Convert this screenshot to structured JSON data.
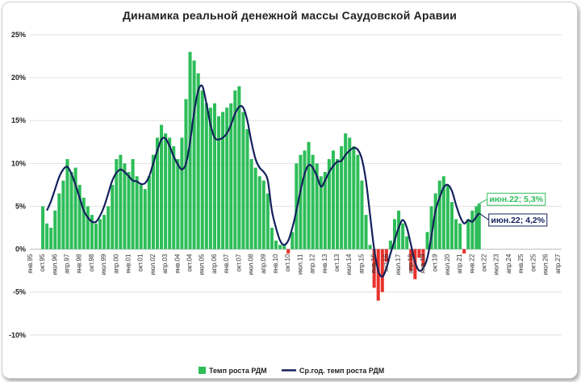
{
  "chart_data": {
    "type": "bar+line",
    "title": "Динамика реальной денежной массы Саудовской Аравии",
    "ylim": [
      -12,
      25
    ],
    "yticks": [
      -10,
      -5,
      0,
      5,
      10,
      15,
      20,
      25
    ],
    "ytick_labels": [
      "-10%",
      "-5%",
      "0%",
      "5%",
      "10%",
      "15%",
      "20%",
      "25%"
    ],
    "x_tick_labels": [
      "янв.95",
      "окт.95",
      "июл.96",
      "апр.97",
      "янв.98",
      "окт.98",
      "июл.99",
      "апр.00",
      "янв.01",
      "окт.01",
      "июл.02",
      "апр.03",
      "янв.04",
      "окт.04",
      "июл.05",
      "апр.06",
      "янв.07",
      "окт.07",
      "июл.08",
      "апр.09",
      "янв.10",
      "окт.10",
      "июл.11",
      "апр.12",
      "янв.13",
      "окт.13",
      "июл.14",
      "апр.15",
      "янв.16",
      "окт.16",
      "июл.17",
      "апр.18",
      "янв.19",
      "окт.19",
      "июл.20",
      "апр.21",
      "янв.22",
      "окт.22",
      "июл.23",
      "апр.24",
      "янв.25",
      "окт.25",
      "июл.26",
      "апр.27"
    ],
    "grid": true,
    "legend_position": "bottom",
    "series": [
      {
        "name": "Темп роста РДМ",
        "type": "bar",
        "color": "#2ebd59",
        "negative_color": "#e8322c",
        "x": [
          "окт.95",
          "янв.96",
          "апр.96",
          "июл.96",
          "окт.96",
          "янв.97",
          "апр.97",
          "июл.97",
          "окт.97",
          "янв.98",
          "апр.98",
          "июл.98",
          "окт.98",
          "янв.99",
          "апр.99",
          "июл.99",
          "окт.99",
          "янв.00",
          "апр.00",
          "июл.00",
          "окт.00",
          "янв.01",
          "апр.01",
          "июл.01",
          "окт.01",
          "янв.02",
          "апр.02",
          "июл.02",
          "окт.02",
          "янв.03",
          "апр.03",
          "июл.03",
          "окт.03",
          "янв.04",
          "апр.04",
          "июл.04",
          "окт.04",
          "янв.05",
          "апр.05",
          "июл.05",
          "окт.05",
          "янв.06",
          "апр.06",
          "июл.06",
          "окт.06",
          "янв.07",
          "апр.07",
          "июл.07",
          "окт.07",
          "янв.08",
          "апр.08",
          "июл.08",
          "окт.08",
          "янв.09",
          "апр.09",
          "июл.09",
          "окт.09",
          "янв.10",
          "апр.10",
          "июл.10",
          "окт.10",
          "янв.11",
          "апр.11",
          "июл.11",
          "окт.11",
          "янв.12",
          "апр.12",
          "июл.12",
          "окт.12",
          "янв.13",
          "апр.13",
          "июл.13",
          "окт.13",
          "янв.14",
          "апр.14",
          "июл.14",
          "окт.14",
          "янв.15",
          "апр.15",
          "июл.15",
          "окт.15",
          "янв.16",
          "апр.16",
          "июл.16",
          "окт.16",
          "янв.17",
          "апр.17",
          "июл.17",
          "окт.17",
          "янв.18",
          "апр.18",
          "июл.18",
          "окт.18",
          "янв.19",
          "апр.19",
          "июл.19",
          "окт.19",
          "янв.20",
          "апр.20",
          "июл.20",
          "окт.20",
          "янв.21",
          "апр.21",
          "июл.21",
          "окт.21",
          "янв.22",
          "апр.22",
          "июн.22"
        ],
        "values": [
          5.0,
          3.0,
          2.5,
          4.5,
          6.5,
          8.0,
          10.5,
          9.0,
          9.5,
          7.5,
          6.0,
          5.0,
          4.0,
          3.0,
          3.5,
          4.0,
          5.0,
          7.5,
          10.5,
          11.0,
          10.0,
          9.0,
          10.5,
          8.5,
          7.5,
          7.0,
          8.5,
          11.0,
          13.0,
          14.5,
          13.5,
          13.0,
          12.0,
          10.5,
          13.0,
          17.5,
          23.0,
          22.0,
          20.5,
          18.5,
          17.0,
          16.5,
          17.0,
          15.5,
          16.0,
          16.5,
          17.0,
          18.5,
          19.0,
          16.0,
          14.0,
          10.5,
          9.5,
          8.5,
          8.0,
          6.5,
          2.5,
          1.0,
          0.5,
          0.5,
          -0.5,
          2.0,
          10.0,
          11.0,
          11.5,
          12.5,
          11.0,
          10.0,
          8.5,
          9.0,
          10.5,
          11.5,
          10.5,
          12.0,
          13.5,
          13.0,
          12.0,
          11.0,
          8.0,
          4.0,
          0.5,
          -4.5,
          -6.0,
          -5.0,
          -1.5,
          1.0,
          3.5,
          4.5,
          3.0,
          1.5,
          -2.5,
          -3.5,
          -1.0,
          -2.0,
          2.0,
          5.0,
          6.5,
          8.0,
          8.5,
          7.5,
          5.5,
          3.5,
          3.0,
          -0.5,
          3.5,
          4.5,
          5.0,
          5.3
        ]
      },
      {
        "name": "Ср.год. темп роста РДМ",
        "type": "line",
        "color": "#14205c",
        "x": [
          "янв.96",
          "апр.96",
          "июл.96",
          "окт.96",
          "янв.97",
          "апр.97",
          "июл.97",
          "окт.97",
          "янв.98",
          "апр.98",
          "июл.98",
          "окт.98",
          "янв.99",
          "апр.99",
          "июл.99",
          "окт.99",
          "янв.00",
          "апр.00",
          "июл.00",
          "окт.00",
          "янв.01",
          "апр.01",
          "июл.01",
          "окт.01",
          "янв.02",
          "апр.02",
          "июл.02",
          "окт.02",
          "янв.03",
          "апр.03",
          "июл.03",
          "окт.03",
          "янв.04",
          "апр.04",
          "июл.04",
          "окт.04",
          "янв.05",
          "апр.05",
          "июл.05",
          "окт.05",
          "янв.06",
          "апр.06",
          "июл.06",
          "окт.06",
          "янв.07",
          "апр.07",
          "июл.07",
          "окт.07",
          "янв.08",
          "апр.08",
          "июл.08",
          "окт.08",
          "янв.09",
          "апр.09",
          "июл.09",
          "окт.09",
          "янв.10",
          "апр.10",
          "июл.10",
          "окт.10",
          "янв.11",
          "апр.11",
          "июл.11",
          "окт.11",
          "янв.12",
          "апр.12",
          "июл.12",
          "окт.12",
          "янв.13",
          "апр.13",
          "июл.13",
          "окт.13",
          "янв.14",
          "апр.14",
          "июл.14",
          "окт.14",
          "янв.15",
          "апр.15",
          "июл.15",
          "окт.15",
          "янв.16",
          "апр.16",
          "июл.16",
          "окт.16",
          "янв.17",
          "апр.17",
          "июл.17",
          "окт.17",
          "янв.18",
          "апр.18",
          "июл.18",
          "окт.18",
          "янв.19",
          "апр.19",
          "июл.19",
          "окт.19",
          "янв.20",
          "апр.20",
          "июл.20",
          "окт.20",
          "янв.21",
          "апр.21",
          "июл.21",
          "окт.21",
          "янв.22",
          "апр.22",
          "июн.22"
        ],
        "values": [
          4.5,
          5.6,
          7.0,
          8.4,
          9.3,
          9.6,
          8.8,
          7.5,
          6.0,
          4.5,
          3.7,
          3.2,
          3.2,
          3.9,
          5.0,
          6.5,
          8.0,
          8.9,
          9.3,
          9.0,
          8.5,
          8.0,
          7.9,
          7.6,
          7.7,
          8.5,
          10.0,
          11.5,
          12.8,
          12.9,
          12.0,
          10.8,
          9.9,
          9.3,
          10.0,
          12.5,
          16.0,
          18.5,
          19.0,
          17.0,
          14.5,
          13.0,
          12.8,
          13.0,
          13.5,
          14.5,
          15.8,
          16.6,
          16.5,
          15.0,
          12.5,
          10.5,
          9.5,
          9.0,
          8.0,
          4.5,
          2.5,
          1.0,
          0.5,
          1.0,
          2.5,
          4.5,
          6.8,
          8.8,
          9.8,
          9.5,
          8.5,
          7.3,
          8.0,
          9.0,
          9.7,
          10.2,
          10.3,
          11.0,
          11.5,
          11.8,
          11.6,
          10.5,
          8.0,
          4.0,
          0.0,
          -2.5,
          -3.2,
          -2.2,
          -0.5,
          1.0,
          2.5,
          3.4,
          2.5,
          0.5,
          -1.5,
          -2.5,
          -2.2,
          -1.0,
          1.5,
          4.5,
          6.0,
          7.2,
          7.5,
          6.8,
          5.2,
          3.8,
          3.0,
          3.4,
          3.2,
          3.8,
          4.2
        ]
      }
    ],
    "annotations": [
      {
        "label": "июн.22; 5,3%",
        "series": "Темп роста РДМ",
        "x": "июн.22",
        "y": 5.3,
        "color": "#2ebd59"
      },
      {
        "label": "июн.22; 4,2%",
        "series": "Ср.год. темп роста РДМ",
        "x": "июн.22",
        "y": 4.2,
        "color": "#14205c"
      }
    ]
  }
}
